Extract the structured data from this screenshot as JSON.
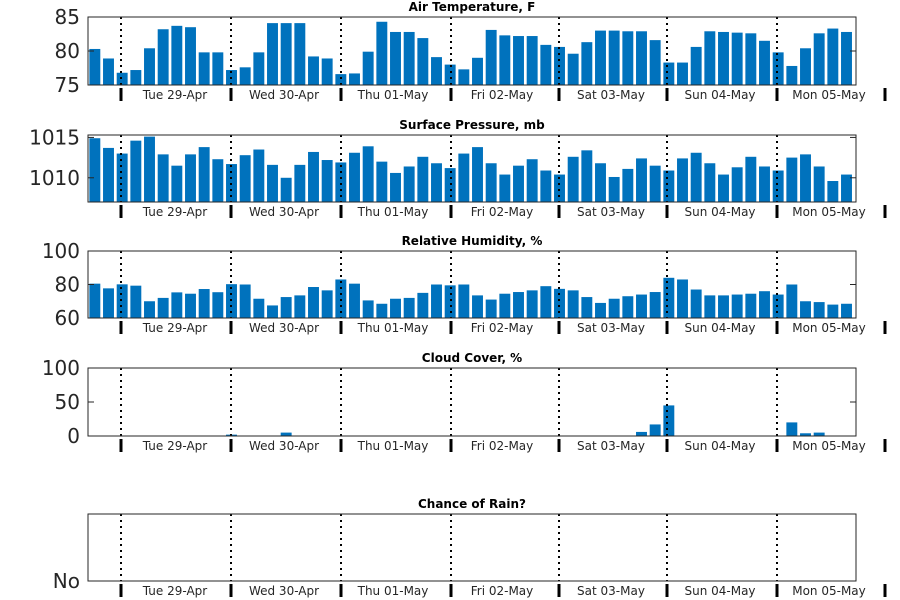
{
  "days": [
    "Tue 29-Apr",
    "Wed 30-Apr",
    "Thu 01-May",
    "Fri 02-May",
    "Sat 03-May",
    "Sun 04-May",
    "Mon 05-May"
  ],
  "bar_color": "#0072BD",
  "chart_data": [
    {
      "type": "bar",
      "title": "Air Temperature, F",
      "ylim": [
        75,
        85
      ],
      "yticks": [
        {
          "value": 75,
          "label": "75"
        },
        {
          "value": 80,
          "label": "80"
        },
        {
          "value": 85,
          "label": "85"
        }
      ],
      "grid": false,
      "values": [
        80.3,
        78.9,
        76.8,
        77.2,
        80.4,
        83.2,
        83.7,
        83.5,
        79.8,
        79.8,
        77.2,
        77.6,
        79.8,
        84.1,
        84.1,
        84.1,
        79.2,
        78.9,
        76.6,
        76.7,
        79.9,
        84.3,
        82.8,
        82.8,
        81.9,
        79.1,
        78.0,
        77.3,
        79.0,
        83.1,
        82.3,
        82.2,
        82.2,
        80.9,
        80.6,
        79.6,
        81.3,
        83.0,
        83.0,
        82.9,
        82.9,
        81.6,
        78.3,
        78.3,
        80.6,
        82.9,
        82.8,
        82.7,
        82.6,
        81.5,
        79.8,
        77.8,
        80.4,
        82.6,
        83.3,
        82.8
      ]
    },
    {
      "type": "bar",
      "title": "Surface Pressure, mb",
      "ylim": [
        1007,
        1015.3
      ],
      "yticks": [
        {
          "value": 1010,
          "label": "1010"
        },
        {
          "value": 1015,
          "label": "1015"
        }
      ],
      "grid": false,
      "values": [
        1014.9,
        1013.7,
        1013.0,
        1014.6,
        1015.1,
        1012.9,
        1011.5,
        1012.9,
        1013.8,
        1012.3,
        1011.7,
        1012.8,
        1013.5,
        1011.6,
        1010.0,
        1011.6,
        1013.2,
        1012.2,
        1011.9,
        1013.1,
        1013.9,
        1012.0,
        1010.6,
        1011.4,
        1012.6,
        1011.8,
        1011.2,
        1013.0,
        1013.8,
        1011.8,
        1010.4,
        1011.5,
        1012.3,
        1010.9,
        1010.4,
        1012.6,
        1013.4,
        1011.8,
        1010.1,
        1011.1,
        1012.4,
        1011.5,
        1010.9,
        1012.4,
        1013.1,
        1011.8,
        1010.4,
        1011.3,
        1012.6,
        1011.4,
        1010.9,
        1012.5,
        1012.9,
        1011.4,
        1009.6,
        1010.4
      ]
    },
    {
      "type": "bar",
      "title": "Relative Humidity, %",
      "ylim": [
        60,
        100
      ],
      "yticks": [
        {
          "value": 60,
          "label": "60"
        },
        {
          "value": 80,
          "label": "80"
        },
        {
          "value": 100,
          "label": "100"
        }
      ],
      "grid": false,
      "values": [
        80.5,
        77.7,
        80.1,
        79.3,
        70.0,
        72.0,
        75.3,
        74.5,
        77.3,
        75.4,
        80.2,
        80.0,
        71.5,
        67.5,
        72.5,
        73.5,
        78.5,
        76.5,
        83.0,
        80.5,
        70.5,
        68.5,
        71.5,
        72.0,
        75.0,
        80.0,
        79.5,
        80.0,
        73.5,
        71.0,
        74.5,
        75.5,
        76.5,
        79.0,
        77.4,
        76.5,
        72.5,
        69.0,
        71.5,
        73.0,
        74.0,
        75.5,
        84.0,
        83.0,
        77.0,
        73.5,
        73.5,
        74.0,
        74.5,
        76.0,
        74.0,
        80.0,
        70.0,
        69.5,
        68.0,
        68.5
      ]
    },
    {
      "type": "bar",
      "title": "Cloud Cover, %",
      "ylim": [
        0,
        100
      ],
      "yticks": [
        {
          "value": 0,
          "label": "0"
        },
        {
          "value": 50,
          "label": "50"
        },
        {
          "value": 100,
          "label": "100"
        }
      ],
      "grid": false,
      "values": [
        0,
        0,
        0,
        0,
        0,
        0,
        0,
        0,
        0,
        0,
        2,
        0,
        0,
        0,
        5,
        0,
        0,
        0,
        0,
        0,
        0,
        0,
        0,
        0,
        0,
        0,
        0,
        0,
        0,
        0,
        0,
        0,
        0,
        0,
        0,
        0,
        0,
        0,
        0,
        0,
        6,
        17,
        45,
        0,
        0,
        0,
        0,
        0,
        0,
        0,
        0,
        20,
        4,
        5,
        0,
        0
      ]
    },
    {
      "type": "bar",
      "title": "Chance of Rain?",
      "ylim": [
        0,
        1
      ],
      "yticks": [
        {
          "value": 0,
          "label": "No"
        }
      ],
      "grid": false,
      "values": [
        0,
        0,
        0,
        0,
        0,
        0,
        0,
        0,
        0,
        0,
        0,
        0,
        0,
        0,
        0,
        0,
        0,
        0,
        0,
        0,
        0,
        0,
        0,
        0,
        0,
        0,
        0,
        0,
        0,
        0,
        0,
        0,
        0,
        0,
        0,
        0,
        0,
        0,
        0,
        0,
        0,
        0,
        0,
        0,
        0,
        0,
        0,
        0,
        0,
        0,
        0,
        0,
        0,
        0,
        0,
        0
      ]
    }
  ]
}
